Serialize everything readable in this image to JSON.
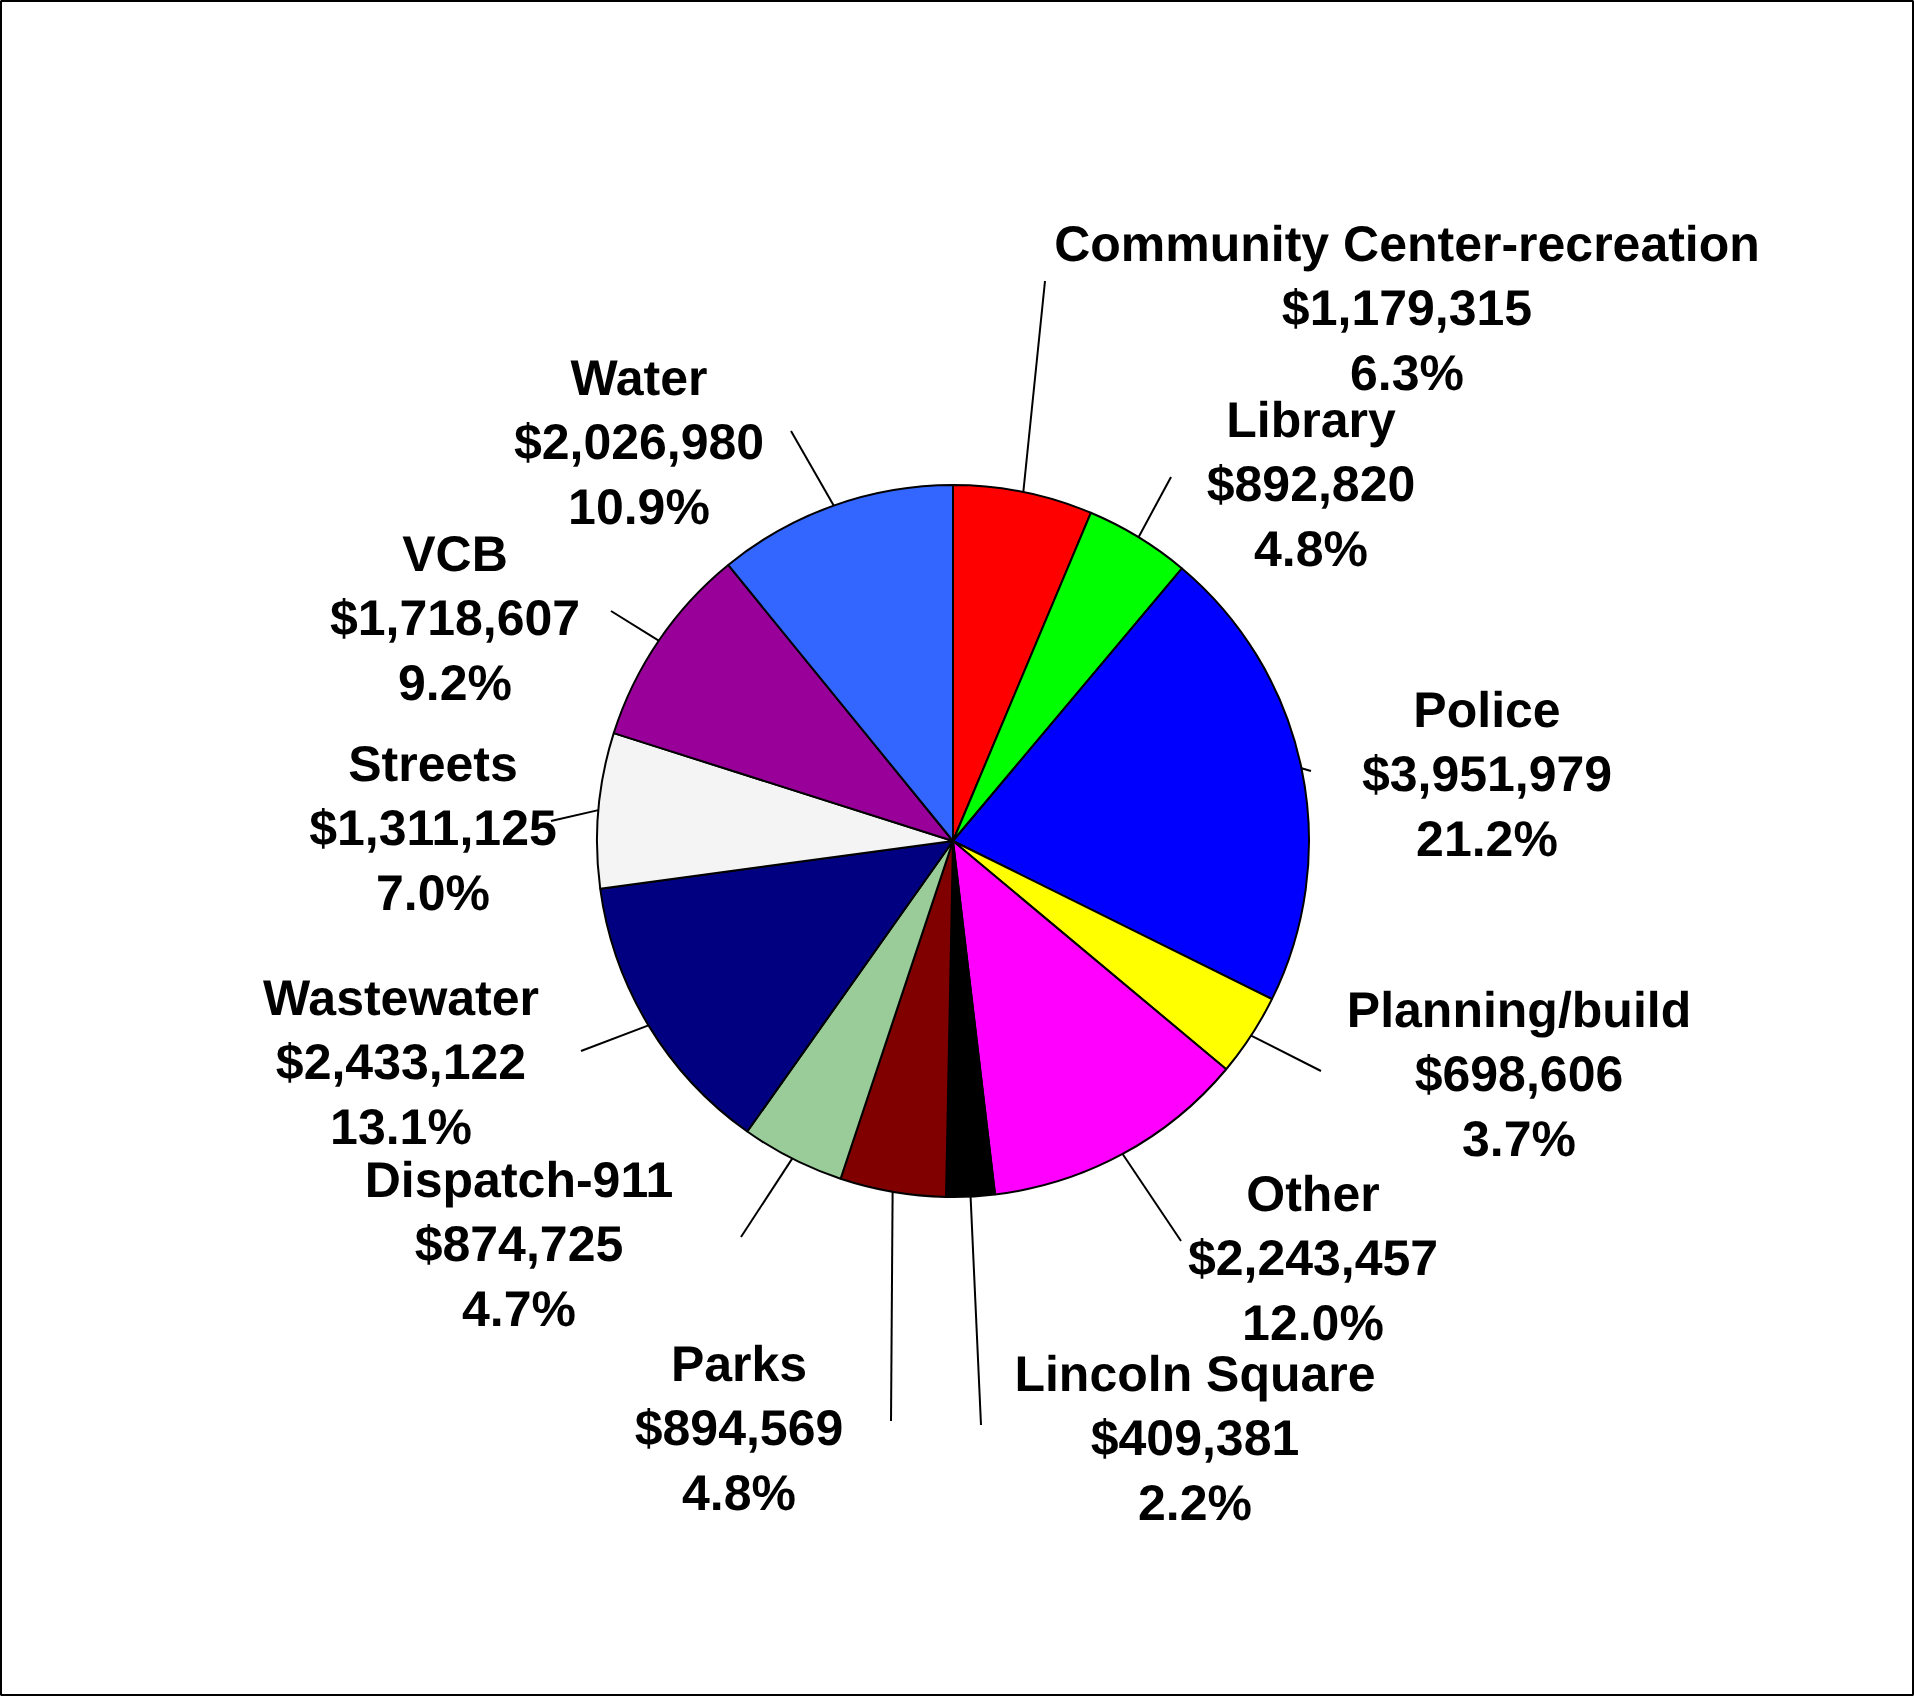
{
  "chart_data": {
    "type": "pie",
    "categories": [
      "Community Center-recreation",
      "Library",
      "Police",
      "Planning/build",
      "Other",
      "Lincoln Square",
      "Parks",
      "Dispatch-911",
      "Wastewater",
      "Streets",
      "VCB",
      "Water"
    ],
    "values": [
      1179315,
      892820,
      3951979,
      698606,
      2243457,
      409381,
      894569,
      874725,
      2433122,
      1311125,
      1718607,
      2026980
    ],
    "colors": [
      "#ff0000",
      "#00ff00",
      "#0000ff",
      "#ffff00",
      "#ff00ff",
      "#000000",
      "#800000",
      "#99cc99",
      "#000080",
      "#f4f4f4",
      "#990099",
      "#3366ff"
    ],
    "value_labels": [
      "$1,179,315\n6.3%",
      "$892,820\n4.8%",
      "$3,951,979\n21.2%",
      "$698,606\n3.7%",
      "$2,243,457\n12.0%",
      "$409,381\n2.2%",
      "$894,569\n4.8%",
      "$874,725\n4.7%",
      "$2,433,122\n13.1%",
      "$1,311,125\n7.0%",
      "$1,718,607\n9.2%",
      "$2,026,980\n10.9%"
    ]
  }
}
